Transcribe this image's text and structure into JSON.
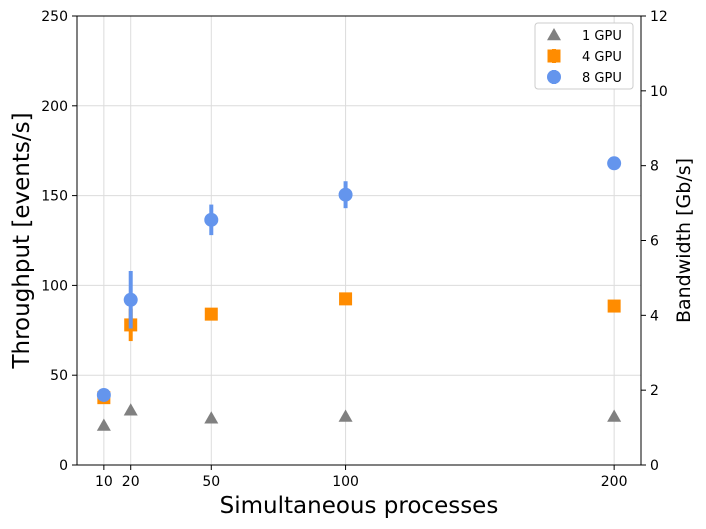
{
  "chart_data": {
    "type": "scatter",
    "title": "",
    "xlabel": "Simultaneous processes",
    "ylabel": "Throughput [events/s]",
    "y2label": "Bandwidth [Gb/s]",
    "x_ticks": [
      10,
      20,
      50,
      100,
      200
    ],
    "xlim": [
      0,
      210
    ],
    "ylim": [
      0,
      250
    ],
    "y_ticks": [
      0,
      50,
      100,
      150,
      200,
      250
    ],
    "y2lim": [
      0,
      12
    ],
    "y2_ticks": [
      0,
      2,
      4,
      6,
      8,
      10,
      12
    ],
    "grid": true,
    "legend_position": "top-right",
    "series": [
      {
        "name": "1 GPU",
        "marker": "triangle",
        "color": "#808080",
        "points": [
          {
            "x": 10,
            "y": 22,
            "err": 0
          },
          {
            "x": 20,
            "y": 30.5,
            "err": 0
          },
          {
            "x": 50,
            "y": 26,
            "err": 0
          },
          {
            "x": 100,
            "y": 27,
            "err": 0
          },
          {
            "x": 200,
            "y": 27,
            "err": 0
          }
        ]
      },
      {
        "name": "4 GPU",
        "marker": "square",
        "color": "#ff8c00",
        "points": [
          {
            "x": 10,
            "y": 37.5,
            "err": 1.5
          },
          {
            "x": 20,
            "y": 78,
            "err": 9
          },
          {
            "x": 50,
            "y": 84,
            "err": 0
          },
          {
            "x": 100,
            "y": 92.5,
            "err": 0
          },
          {
            "x": 200,
            "y": 88.5,
            "err": 0
          }
        ]
      },
      {
        "name": "8 GPU",
        "marker": "circle",
        "color": "#6495ed",
        "points": [
          {
            "x": 10,
            "y": 39,
            "err": 1
          },
          {
            "x": 20,
            "y": 92,
            "err": 16
          },
          {
            "x": 50,
            "y": 136.5,
            "err": 8.5
          },
          {
            "x": 100,
            "y": 150.5,
            "err": 7.5
          },
          {
            "x": 200,
            "y": 168,
            "err": 0
          }
        ]
      }
    ]
  }
}
